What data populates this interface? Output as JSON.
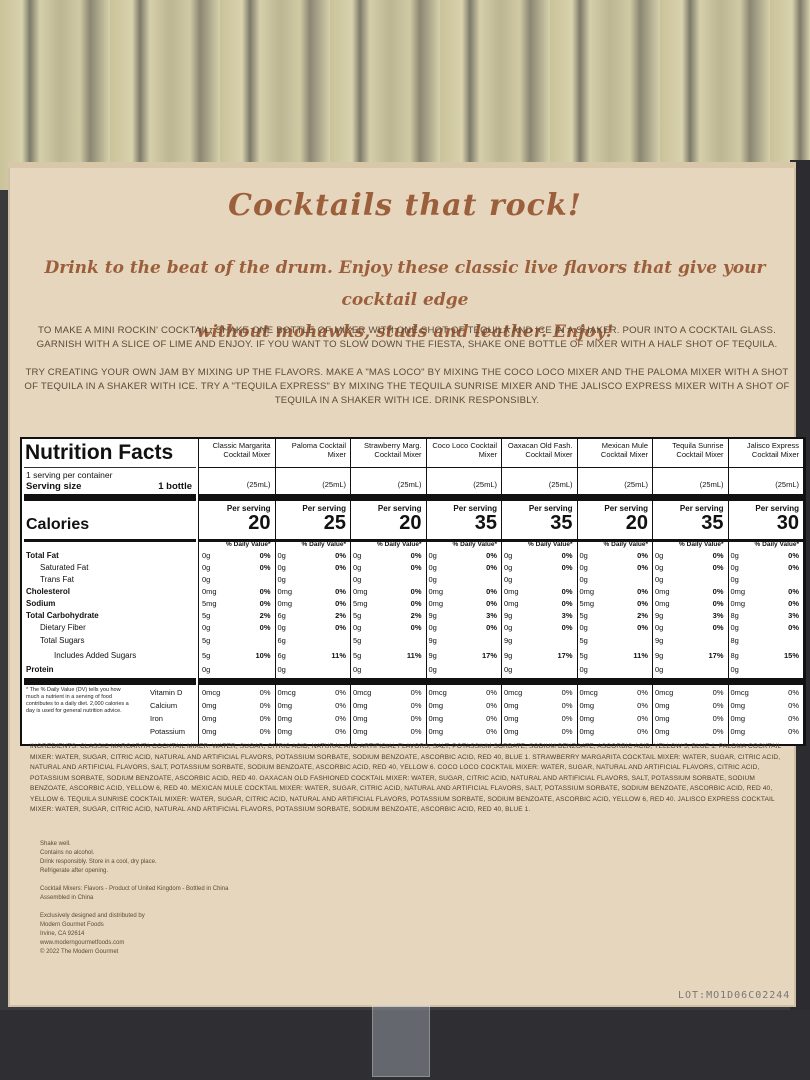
{
  "headline": "Cocktails that rock!",
  "tagline_line1": "Drink to the beat of the drum. Enjoy these classic live flavors that give your cocktail edge",
  "tagline_line2": "without mohawks, studs and leather. Enjoy!",
  "paragraph1": "TO MAKE A MINI ROCKIN' COCKTAIL, SHAKE ONE BOTTLE OF MIXER WITH ONE SHOT OF TEQUILA AND ICE IN A SHAKER. POUR INTO A COCKTAIL GLASS. GARNISH WITH A SLICE OF LIME AND ENJOY. IF YOU WANT TO SLOW DOWN THE FIESTA, SHAKE ONE BOTTLE OF MIXER WITH A HALF SHOT OF TEQUILA.",
  "paragraph2": "TRY CREATING YOUR OWN JAM BY MIXING UP THE FLAVORS. MAKE A \"MAS LOCO\" BY MIXING THE COCO LOCO MIXER AND THE PALOMA MIXER WITH A SHOT OF TEQUILA IN A SHAKER WITH ICE. TRY A \"TEQUILA EXPRESS\" BY MIXING THE TEQUILA SUNRISE MIXER AND THE JALISCO EXPRESS MIXER WITH A SHOT OF TEQUILA IN A SHAKER WITH ICE. DRINK RESPONSIBLY.",
  "nutrition": {
    "title": "Nutrition Facts",
    "servings_per_container": "1 serving per container",
    "serving_size_label": "Serving size",
    "serving_size_value": "1 bottle",
    "calories_label": "Calories",
    "per_serving": "Per serving",
    "dv_header": "% Daily Value*",
    "rows": {
      "total_fat": "Total Fat",
      "saturated_fat": "Saturated Fat",
      "trans_fat": "Trans Fat",
      "cholesterol": "Cholesterol",
      "sodium": "Sodium",
      "total_carb": "Total Carbohydrate",
      "dietary_fiber": "Dietary Fiber",
      "total_sugars": "Total Sugars",
      "added_sugars": "Includes Added Sugars",
      "protein": "Protein"
    },
    "vitamins": {
      "vitamin_d": "Vitamin D",
      "calcium": "Calcium",
      "iron": "Iron",
      "potassium": "Potassium"
    },
    "footnote": "* The % Daily Value (DV) tells you how much a nutrient in a serving of food contributes to a daily diet. 2,000 calories a day is used for general nutrition advice.",
    "products": [
      {
        "name": "Classic Margarita Cocktail Mixer",
        "serving": "(25mL)",
        "calories": "20",
        "fat": "0g",
        "fat_dv": "0%",
        "sat": "0g",
        "sat_dv": "0%",
        "trans": "0g",
        "chol": "0mg",
        "chol_dv": "0%",
        "sodium": "5mg",
        "sodium_dv": "0%",
        "carb": "5g",
        "carb_dv": "2%",
        "fiber": "0g",
        "fiber_dv": "0%",
        "sugars": "5g",
        "added": "5g",
        "added_dv": "10%",
        "protein": "0g",
        "vitd": "0mcg",
        "vitd_dv": "0%",
        "calcium": "0mg",
        "calcium_dv": "0%",
        "iron": "0mg",
        "iron_dv": "0%",
        "potassium": "0mg",
        "potassium_dv": "0%"
      },
      {
        "name": "Paloma Cocktail Mixer",
        "serving": "(25mL)",
        "calories": "25",
        "fat": "0g",
        "fat_dv": "0%",
        "sat": "0g",
        "sat_dv": "0%",
        "trans": "0g",
        "chol": "0mg",
        "chol_dv": "0%",
        "sodium": "0mg",
        "sodium_dv": "0%",
        "carb": "6g",
        "carb_dv": "2%",
        "fiber": "0g",
        "fiber_dv": "0%",
        "sugars": "6g",
        "added": "6g",
        "added_dv": "11%",
        "protein": "0g",
        "vitd": "0mcg",
        "vitd_dv": "0%",
        "calcium": "0mg",
        "calcium_dv": "0%",
        "iron": "0mg",
        "iron_dv": "0%",
        "potassium": "0mg",
        "potassium_dv": "0%"
      },
      {
        "name": "Strawberry Marg. Cocktail Mixer",
        "serving": "(25mL)",
        "calories": "20",
        "fat": "0g",
        "fat_dv": "0%",
        "sat": "0g",
        "sat_dv": "0%",
        "trans": "0g",
        "chol": "0mg",
        "chol_dv": "0%",
        "sodium": "5mg",
        "sodium_dv": "0%",
        "carb": "5g",
        "carb_dv": "2%",
        "fiber": "0g",
        "fiber_dv": "0%",
        "sugars": "5g",
        "added": "5g",
        "added_dv": "11%",
        "protein": "0g",
        "vitd": "0mcg",
        "vitd_dv": "0%",
        "calcium": "0mg",
        "calcium_dv": "0%",
        "iron": "0mg",
        "iron_dv": "0%",
        "potassium": "0mg",
        "potassium_dv": "0%"
      },
      {
        "name": "Coco Loco Cocktail Mixer",
        "serving": "(25mL)",
        "calories": "35",
        "fat": "0g",
        "fat_dv": "0%",
        "sat": "0g",
        "sat_dv": "0%",
        "trans": "0g",
        "chol": "0mg",
        "chol_dv": "0%",
        "sodium": "0mg",
        "sodium_dv": "0%",
        "carb": "9g",
        "carb_dv": "3%",
        "fiber": "0g",
        "fiber_dv": "0%",
        "sugars": "9g",
        "added": "9g",
        "added_dv": "17%",
        "protein": "0g",
        "vitd": "0mcg",
        "vitd_dv": "0%",
        "calcium": "0mg",
        "calcium_dv": "0%",
        "iron": "0mg",
        "iron_dv": "0%",
        "potassium": "0mg",
        "potassium_dv": "0%"
      },
      {
        "name": "Oaxacan Old Fash. Cocktail Mixer",
        "serving": "(25mL)",
        "calories": "35",
        "fat": "0g",
        "fat_dv": "0%",
        "sat": "0g",
        "sat_dv": "0%",
        "trans": "0g",
        "chol": "0mg",
        "chol_dv": "0%",
        "sodium": "0mg",
        "sodium_dv": "0%",
        "carb": "9g",
        "carb_dv": "3%",
        "fiber": "0g",
        "fiber_dv": "0%",
        "sugars": "9g",
        "added": "9g",
        "added_dv": "17%",
        "protein": "0g",
        "vitd": "0mcg",
        "vitd_dv": "0%",
        "calcium": "0mg",
        "calcium_dv": "0%",
        "iron": "0mg",
        "iron_dv": "0%",
        "potassium": "0mg",
        "potassium_dv": "0%"
      },
      {
        "name": "Mexican Mule Cocktail Mixer",
        "serving": "(25mL)",
        "calories": "20",
        "fat": "0g",
        "fat_dv": "0%",
        "sat": "0g",
        "sat_dv": "0%",
        "trans": "0g",
        "chol": "0mg",
        "chol_dv": "0%",
        "sodium": "5mg",
        "sodium_dv": "0%",
        "carb": "5g",
        "carb_dv": "2%",
        "fiber": "0g",
        "fiber_dv": "0%",
        "sugars": "5g",
        "added": "5g",
        "added_dv": "11%",
        "protein": "0g",
        "vitd": "0mcg",
        "vitd_dv": "0%",
        "calcium": "0mg",
        "calcium_dv": "0%",
        "iron": "0mg",
        "iron_dv": "0%",
        "potassium": "0mg",
        "potassium_dv": "0%"
      },
      {
        "name": "Tequila Sunrise Cocktail Mixer",
        "serving": "(25mL)",
        "calories": "35",
        "fat": "0g",
        "fat_dv": "0%",
        "sat": "0g",
        "sat_dv": "0%",
        "trans": "0g",
        "chol": "0mg",
        "chol_dv": "0%",
        "sodium": "0mg",
        "sodium_dv": "0%",
        "carb": "9g",
        "carb_dv": "3%",
        "fiber": "0g",
        "fiber_dv": "0%",
        "sugars": "9g",
        "added": "9g",
        "added_dv": "17%",
        "protein": "0g",
        "vitd": "0mcg",
        "vitd_dv": "0%",
        "calcium": "0mg",
        "calcium_dv": "0%",
        "iron": "0mg",
        "iron_dv": "0%",
        "potassium": "0mg",
        "potassium_dv": "0%"
      },
      {
        "name": "Jalisco Express Cocktail Mixer",
        "serving": "(25mL)",
        "calories": "30",
        "fat": "0g",
        "fat_dv": "0%",
        "sat": "0g",
        "sat_dv": "0%",
        "trans": "0g",
        "chol": "0mg",
        "chol_dv": "0%",
        "sodium": "0mg",
        "sodium_dv": "0%",
        "carb": "8g",
        "carb_dv": "3%",
        "fiber": "0g",
        "fiber_dv": "0%",
        "sugars": "8g",
        "added": "8g",
        "added_dv": "15%",
        "protein": "0g",
        "vitd": "0mcg",
        "vitd_dv": "0%",
        "calcium": "0mg",
        "calcium_dv": "0%",
        "iron": "0mg",
        "iron_dv": "0%",
        "potassium": "0mg",
        "potassium_dv": "0%"
      }
    ]
  },
  "ingredients": "INGREDIENTS: CLASSIC MARGARITA COCKTAIL MIXER: WATER, SUGAR, CITRIC ACID, NATURAL AND ARTIFICIAL FLAVORS, SALT, POTASSIUM SORBATE, SODIUM BENZOATE, ASCORBIC ACID, YELLOW 5, BLUE 1. PALOMA COCKTAIL MIXER: WATER, SUGAR, CITRIC ACID, NATURAL AND ARTIFICIAL FLAVORS, POTASSIUM SORBATE, SODIUM BENZOATE, ASCORBIC ACID, RED 40, BLUE 1. STRAWBERRY MARGARITA COCKTAIL MIXER: WATER, SUGAR, CITRIC ACID, NATURAL AND ARTIFICIAL FLAVORS, SALT, POTASSIUM SORBATE, SODIUM BENZOATE, ASCORBIC ACID, RED 40, YELLOW 6. COCO LOCO COCKTAIL MIXER: WATER, SUGAR, NATURAL AND ARTIFICIAL FLAVORS, CITRIC ACID, POTASSIUM SORBATE, SODIUM BENZOATE, ASCORBIC ACID, RED 40. OAXACAN OLD FASHIONED COCKTAIL MIXER: WATER, SUGAR, CITRIC ACID, NATURAL AND ARTIFICIAL FLAVORS, SALT, POTASSIUM SORBATE, SODIUM BENZOATE, ASCORBIC ACID, YELLOW 6, RED 40. MEXICAN MULE COCKTAIL MIXER: WATER, SUGAR, CITRIC ACID, NATURAL AND ARTIFICIAL FLAVORS, SALT, POTASSIUM SORBATE, SODIUM BENZOATE, ASCORBIC ACID, RED 40, YELLOW 6. TEQUILA SUNRISE COCKTAIL MIXER: WATER, SUGAR, CITRIC ACID, NATURAL AND ARTIFICIAL FLAVORS, POTASSIUM SORBATE, SODIUM BENZOATE, ASCORBIC ACID, YELLOW 6, RED 40. JALISCO EXPRESS COCKTAIL MIXER: WATER, SUGAR, CITRIC ACID, NATURAL AND ARTIFICIAL FLAVORS, POTASSIUM SORBATE, SODIUM BENZOATE, ASCORBIC ACID, RED 40, BLUE 1.",
  "storage_lines": [
    "Shake well.",
    "Contains no alcohol.",
    "Drink responsibly. Store in a cool, dry place.",
    "Refrigerate after opening."
  ],
  "origin_lines": [
    "Cocktail Mixers: Flavors - Product of United Kingdom - Bottled in China",
    "Assembled in China"
  ],
  "distributor_lines": [
    "Exclusively designed and distributed by",
    "Modern Gourmet Foods",
    "Irvine, CA 92614",
    "www.moderngourmetfoods.com",
    "© 2022 The Modern Gourmet"
  ],
  "lot": "LOT:MO1D06C02244"
}
